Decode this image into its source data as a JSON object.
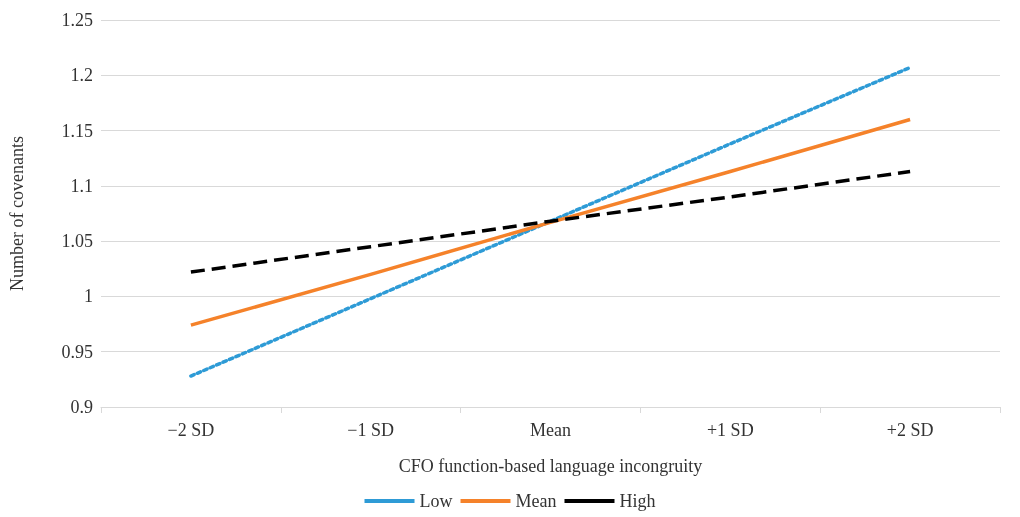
{
  "chart_data": {
    "type": "line",
    "xlabel": "CFO function-based language incongruity",
    "ylabel": "Number of covenants",
    "categories": [
      "−2 SD",
      "−1 SD",
      "Mean",
      "+1 SD",
      "+2 SD"
    ],
    "series": [
      {
        "name": "Low",
        "color": "#2e9bd6",
        "line_style": "dotted",
        "values": [
          0.928,
          0.998,
          1.068,
          1.138,
          1.207
        ]
      },
      {
        "name": "Mean",
        "color": "#f5822a",
        "line_style": "solid",
        "values": [
          0.974,
          1.02,
          1.067,
          1.113,
          1.16
        ]
      },
      {
        "name": "High",
        "color": "#000000",
        "line_style": "dashed",
        "values": [
          1.022,
          1.045,
          1.068,
          1.09,
          1.113
        ]
      }
    ],
    "ylim": [
      0.9,
      1.25
    ],
    "yticks": [
      0.9,
      0.95,
      1,
      1.05,
      1.1,
      1.15,
      1.2,
      1.25
    ],
    "grid": "y",
    "legend": "bottom",
    "marker": "none"
  }
}
